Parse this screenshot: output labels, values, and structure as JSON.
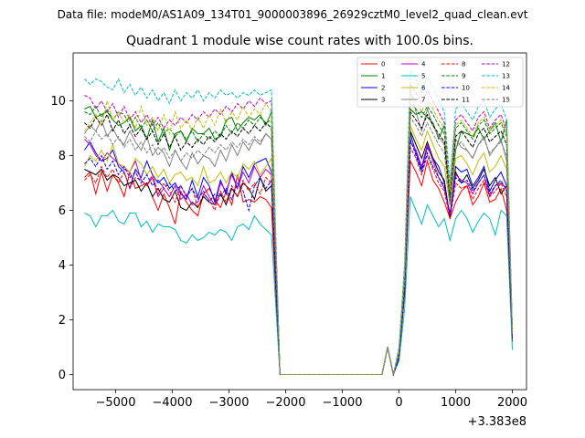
{
  "figure": {
    "suptitle": "Data file: modeM0/AS1A09_134T01_9000003896_26929cztM0_level2_quad_clean.evt"
  },
  "chart_data": {
    "type": "line",
    "title": "Quadrant 1 module wise count rates with 100.0s bins.",
    "xlabel": "",
    "ylabel": "",
    "offset_label": "+3.383e8",
    "xlim": [
      -5750,
      2250
    ],
    "ylim": [
      -0.55,
      11.75
    ],
    "xticks": [
      -5000,
      -4000,
      -3000,
      -2000,
      -1000,
      0,
      1000,
      2000
    ],
    "xtick_labels": [
      "−5000",
      "−4000",
      "−3000",
      "−2000",
      "−1000",
      "0",
      "1000",
      "2000"
    ],
    "yticks": [
      0,
      2,
      4,
      6,
      8,
      10
    ],
    "ytick_labels": [
      "0",
      "2",
      "4",
      "6",
      "8",
      "10"
    ],
    "legend_position": "top-right",
    "x": {
      "start": -5550,
      "step": 100,
      "gap_start": -2100,
      "gap_end": -300,
      "flare_points": [
        [
          -300,
          0
        ],
        [
          -200,
          1
        ],
        [
          -100,
          0
        ]
      ],
      "post_start": 0,
      "post_end": 1900
    },
    "series": [
      {
        "name": "0",
        "color": "#ff0000",
        "dashed": false,
        "pre": [
          7.2,
          7.4,
          6.6,
          7.4,
          6.7,
          7.3,
          7.0,
          6.5,
          7.4,
          6.8,
          6.9,
          7.0,
          6.5,
          6.0,
          6.6,
          6.1,
          5.5,
          6.7,
          6.3,
          6.0,
          5.8,
          6.6,
          6.8,
          6.4,
          6.1,
          6.7,
          6.2,
          7.3,
          6.3,
          6.4,
          6.3,
          6.5,
          6.4,
          6.1
        ],
        "post": [
          0.6,
          3.0,
          7.8,
          7.4,
          6.9,
          7.8,
          7.1,
          6.8,
          6.3,
          5.7,
          6.3,
          6.7,
          6.9,
          6.2,
          6.5,
          7.0,
          6.3,
          6.4,
          6.8,
          6.0,
          1.4
        ]
      },
      {
        "name": "1",
        "color": "#008000",
        "dashed": false,
        "pre": [
          9.7,
          9.8,
          9.4,
          9.5,
          9.6,
          9.3,
          9.1,
          9.2,
          9.4,
          8.9,
          9.1,
          8.6,
          9.3,
          8.5,
          9.0,
          8.2,
          8.8,
          8.9,
          8.5,
          9.0,
          8.8,
          8.8,
          9.0,
          8.6,
          8.7,
          9.3,
          9.4,
          8.9,
          9.2,
          9.4,
          9.3,
          9.5,
          9.1,
          9.6
        ],
        "post": [
          0.8,
          3.5,
          9.7,
          9.5,
          9.6,
          9.4,
          9.2,
          8.6,
          9.1,
          6.2,
          8.2,
          8.9,
          8.8,
          8.7,
          9.0,
          8.6,
          8.9,
          9.2,
          8.5,
          9.3,
          1.5
        ]
      },
      {
        "name": "2",
        "color": "#0000ff",
        "dashed": false,
        "pre": [
          8.2,
          8.5,
          8.1,
          7.8,
          7.9,
          8.2,
          7.6,
          7.4,
          6.8,
          7.5,
          7.2,
          7.8,
          7.3,
          7.0,
          7.2,
          6.8,
          7.0,
          6.6,
          6.4,
          7.1,
          6.5,
          7.2,
          6.9,
          6.3,
          7.1,
          6.6,
          7.4,
          6.8,
          7.6,
          7.2,
          7.7,
          7.8,
          7.9,
          7.4
        ],
        "post": [
          0.7,
          3.2,
          8.8,
          8.1,
          7.5,
          8.3,
          7.9,
          7.6,
          7.0,
          5.8,
          7.6,
          7.4,
          7.5,
          6.9,
          7.2,
          7.6,
          6.7,
          7.1,
          7.4,
          6.9,
          1.3
        ]
      },
      {
        "name": "3",
        "color": "#000000",
        "dashed": false,
        "pre": [
          7.5,
          7.4,
          7.3,
          7.5,
          7.1,
          7.3,
          7.2,
          6.9,
          7.0,
          7.1,
          6.7,
          7.0,
          6.5,
          6.8,
          6.4,
          6.3,
          6.7,
          6.1,
          6.0,
          6.3,
          6.1,
          6.5,
          6.3,
          6.2,
          6.6,
          6.2,
          6.8,
          6.5,
          7.0,
          6.8,
          6.4,
          7.2,
          6.7,
          6.9
        ],
        "post": [
          0.6,
          3.1,
          8.9,
          8.4,
          7.9,
          8.5,
          7.9,
          7.4,
          7.1,
          5.7,
          7.4,
          7.0,
          7.3,
          6.8,
          7.1,
          7.5,
          6.9,
          7.2,
          6.6,
          6.9,
          1.2
        ]
      },
      {
        "name": "4",
        "color": "#bf00bf",
        "dashed": false,
        "pre": [
          8.6,
          8.4,
          8.0,
          7.8,
          8.1,
          7.9,
          7.7,
          7.5,
          7.4,
          7.8,
          7.1,
          6.9,
          7.2,
          6.5,
          6.8,
          6.5,
          6.9,
          6.4,
          6.6,
          6.2,
          6.3,
          6.9,
          6.5,
          6.2,
          7.0,
          6.7,
          7.3,
          6.8,
          7.4,
          7.0,
          7.6,
          7.2,
          7.5,
          7.3
        ],
        "post": [
          0.7,
          3.3,
          8.5,
          8.2,
          7.6,
          8.4,
          7.8,
          7.2,
          6.8,
          5.9,
          7.3,
          7.1,
          7.0,
          6.6,
          7.0,
          7.3,
          6.5,
          6.9,
          7.0,
          6.8,
          1.3
        ]
      },
      {
        "name": "5",
        "color": "#00bfbf",
        "dashed": false,
        "pre": [
          5.9,
          5.8,
          5.4,
          5.8,
          5.8,
          6.0,
          5.6,
          5.5,
          5.9,
          5.9,
          5.4,
          5.6,
          5.2,
          5.5,
          5.4,
          5.4,
          5.3,
          4.9,
          4.8,
          5.1,
          4.9,
          5.0,
          5.2,
          5.1,
          5.3,
          5.2,
          4.9,
          5.4,
          5.5,
          5.3,
          5.8,
          5.5,
          5.3,
          5.1
        ],
        "post": [
          0.5,
          2.4,
          6.5,
          6.0,
          5.5,
          6.2,
          5.8,
          5.4,
          5.7,
          4.9,
          5.7,
          6.0,
          5.7,
          5.2,
          5.6,
          5.9,
          5.7,
          5.1,
          6.0,
          5.8,
          0.9
        ]
      },
      {
        "name": "6",
        "color": "#bfbf00",
        "dashed": false,
        "pre": [
          7.6,
          8.0,
          7.8,
          8.2,
          7.8,
          8.4,
          7.7,
          7.6,
          7.4,
          7.9,
          7.7,
          7.3,
          7.6,
          7.2,
          7.5,
          7.0,
          7.3,
          7.4,
          7.1,
          7.2,
          6.9,
          7.6,
          7.0,
          7.1,
          7.4,
          7.0,
          7.4,
          7.2,
          7.7,
          7.5,
          7.8,
          7.3,
          7.6,
          7.9
        ],
        "post": [
          0.7,
          3.4,
          9.1,
          8.6,
          8.2,
          8.9,
          8.4,
          7.9,
          7.6,
          6.2,
          7.9,
          8.0,
          7.7,
          7.3,
          7.8,
          8.1,
          7.4,
          7.6,
          8.0,
          7.5,
          1.4
        ]
      },
      {
        "name": "7",
        "color": "#808080",
        "dashed": false,
        "pre": [
          8.8,
          9.1,
          8.9,
          9.3,
          8.7,
          9.0,
          8.6,
          8.4,
          8.9,
          8.5,
          8.2,
          8.7,
          8.0,
          8.3,
          8.1,
          7.6,
          8.2,
          7.8,
          7.5,
          8.1,
          7.7,
          8.0,
          7.9,
          7.6,
          8.2,
          7.8,
          8.4,
          8.0,
          8.5,
          8.2,
          8.6,
          8.4,
          8.8,
          8.6
        ],
        "post": [
          0.8,
          3.6,
          10.4,
          9.6,
          8.9,
          9.7,
          9.1,
          8.7,
          8.4,
          6.6,
          8.6,
          8.3,
          8.2,
          7.9,
          8.4,
          8.7,
          8.0,
          8.3,
          8.6,
          7.8,
          1.5
        ]
      },
      {
        "name": "8",
        "color": "#ff0000",
        "dashed": true,
        "pre": [
          7.1,
          7.3,
          7.0,
          7.6,
          7.2,
          7.5,
          7.0,
          7.4,
          6.8,
          7.2,
          7.1,
          6.9,
          7.3,
          6.6,
          7.0,
          6.7,
          6.3,
          6.9,
          6.5,
          6.8,
          6.1,
          6.6,
          6.4,
          6.0,
          6.7,
          6.3,
          6.9,
          6.5,
          7.1,
          6.7,
          7.0,
          6.6,
          7.2,
          7.0
        ],
        "post": [
          0.6,
          3.0,
          8.3,
          7.9,
          7.3,
          8.0,
          7.5,
          7.0,
          6.7,
          5.7,
          7.0,
          6.8,
          6.9,
          6.4,
          6.8,
          7.1,
          6.5,
          6.7,
          7.0,
          6.5,
          1.3
        ]
      },
      {
        "name": "9",
        "color": "#008000",
        "dashed": true,
        "pre": [
          9.6,
          9.5,
          9.8,
          9.4,
          9.7,
          9.3,
          9.6,
          9.5,
          9.1,
          9.4,
          9.0,
          9.3,
          8.9,
          9.2,
          8.8,
          9.0,
          8.7,
          8.9,
          8.6,
          8.9,
          8.5,
          8.8,
          8.6,
          8.9,
          8.7,
          9.1,
          8.8,
          9.2,
          9.0,
          9.3,
          9.1,
          9.4,
          9.2,
          9.3
        ],
        "post": [
          0.8,
          3.7,
          9.9,
          9.7,
          9.4,
          9.8,
          9.5,
          9.1,
          8.8,
          6.5,
          9.0,
          9.2,
          8.9,
          8.6,
          9.1,
          9.3,
          8.8,
          9.0,
          9.2,
          8.7,
          1.6
        ]
      },
      {
        "name": "10",
        "color": "#0000ff",
        "dashed": true,
        "pre": [
          7.7,
          7.9,
          7.6,
          8.0,
          7.5,
          7.8,
          7.3,
          7.6,
          7.2,
          7.4,
          7.0,
          7.3,
          6.9,
          7.1,
          6.8,
          7.0,
          6.7,
          6.9,
          6.5,
          6.8,
          6.4,
          6.7,
          6.3,
          6.6,
          6.5,
          6.8,
          6.4,
          7.0,
          6.7,
          6.0,
          6.9,
          7.2,
          6.8,
          7.1
        ],
        "post": [
          0.6,
          3.1,
          8.6,
          8.0,
          7.4,
          8.1,
          7.6,
          7.2,
          6.9,
          5.8,
          7.2,
          7.0,
          7.1,
          6.7,
          7.0,
          7.3,
          6.6,
          6.9,
          7.1,
          6.7,
          1.3
        ]
      },
      {
        "name": "11",
        "color": "#000000",
        "dashed": true,
        "pre": [
          9.2,
          9.0,
          9.4,
          9.1,
          9.5,
          8.9,
          9.3,
          8.8,
          9.1,
          8.7,
          9.0,
          8.6,
          8.9,
          8.4,
          8.8,
          8.3,
          8.7,
          8.2,
          8.5,
          8.3,
          8.6,
          8.4,
          8.7,
          8.5,
          8.8,
          8.6,
          8.9,
          8.7,
          9.0,
          8.8,
          9.1,
          8.9,
          9.2,
          9.0
        ],
        "post": [
          0.8,
          3.5,
          9.6,
          9.3,
          9.0,
          9.5,
          9.1,
          8.8,
          8.5,
          6.3,
          8.7,
          8.9,
          8.6,
          8.3,
          8.8,
          9.0,
          8.5,
          8.7,
          8.9,
          8.4,
          1.5
        ]
      },
      {
        "name": "12",
        "color": "#bf00bf",
        "dashed": true,
        "pre": [
          10.2,
          10.1,
          9.7,
          10.0,
          9.6,
          9.9,
          9.4,
          9.8,
          9.3,
          9.6,
          9.2,
          9.5,
          9.1,
          9.4,
          9.0,
          9.3,
          9.1,
          9.4,
          9.2,
          9.5,
          9.3,
          9.6,
          9.4,
          9.7,
          9.5,
          9.8,
          9.6,
          9.9,
          9.7,
          10.0,
          9.8,
          10.1,
          9.9,
          10.0
        ],
        "post": [
          0.9,
          3.9,
          10.6,
          10.3,
          9.9,
          10.4,
          10.0,
          9.6,
          9.2,
          6.8,
          9.3,
          9.5,
          9.2,
          8.9,
          9.4,
          9.6,
          9.0,
          9.3,
          9.5,
          8.9,
          1.6
        ]
      },
      {
        "name": "13",
        "color": "#00bfbf",
        "dashed": true,
        "pre": [
          10.8,
          10.6,
          10.8,
          10.7,
          10.5,
          10.4,
          10.8,
          10.3,
          10.6,
          10.2,
          10.5,
          10.1,
          10.4,
          10.0,
          10.3,
          9.9,
          10.4,
          10.0,
          10.3,
          10.1,
          10.4,
          10.0,
          10.3,
          10.1,
          10.4,
          10.2,
          10.3,
          10.1,
          10.3,
          10.2,
          10.4,
          10.2,
          10.3,
          10.4
        ],
        "post": [
          1.0,
          4.1,
          11.1,
          10.8,
          10.3,
          10.9,
          10.5,
          10.0,
          9.6,
          7.0,
          9.7,
          9.9,
          9.6,
          9.3,
          9.8,
          10.0,
          9.4,
          9.7,
          9.9,
          9.3,
          1.7
        ]
      },
      {
        "name": "14",
        "color": "#bfbf00",
        "dashed": true,
        "pre": [
          8.9,
          9.2,
          9.5,
          9.1,
          10.0,
          9.3,
          9.6,
          9.2,
          9.5,
          9.0,
          9.8,
          9.1,
          9.4,
          8.9,
          9.5,
          8.8,
          9.6,
          9.0,
          9.3,
          8.9,
          9.4,
          9.0,
          9.5,
          9.1,
          9.7,
          9.2,
          9.6,
          9.3,
          9.8,
          9.4,
          9.7,
          9.5,
          9.9,
          9.6
        ],
        "post": [
          0.9,
          3.8,
          10.3,
          10.0,
          9.6,
          10.1,
          9.7,
          9.3,
          9.0,
          6.7,
          9.1,
          9.3,
          9.0,
          8.7,
          9.2,
          9.4,
          8.9,
          9.1,
          9.3,
          8.8,
          1.6
        ]
      },
      {
        "name": "15",
        "color": "#808080",
        "dashed": true,
        "pre": [
          8.7,
          8.5,
          8.9,
          8.6,
          8.8,
          8.4,
          8.7,
          8.3,
          8.6,
          8.2,
          8.5,
          8.1,
          8.4,
          8.0,
          8.3,
          7.9,
          8.2,
          7.8,
          8.1,
          7.9,
          8.2,
          8.0,
          8.3,
          8.1,
          8.4,
          8.2,
          8.5,
          8.3,
          8.6,
          8.4,
          8.7,
          8.5,
          8.8,
          8.6
        ],
        "post": [
          0.8,
          3.4,
          9.4,
          9.1,
          8.7,
          9.2,
          8.8,
          8.4,
          8.1,
          6.2,
          8.3,
          8.5,
          8.2,
          7.9,
          8.4,
          8.6,
          8.1,
          8.3,
          8.5,
          8.0,
          1.4
        ]
      }
    ]
  }
}
